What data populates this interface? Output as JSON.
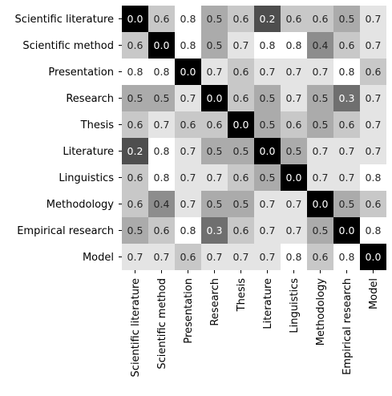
{
  "chart_data": {
    "type": "heatmap",
    "title": "",
    "xlabel": "",
    "ylabel": "",
    "colormap": "greys",
    "color_low": "#000000",
    "color_high": "#ffffff",
    "value_range": [
      0,
      0.8
    ],
    "annotate_format": "0.0",
    "rows": [
      "Scientific literature",
      "Scientific method",
      "Presentation",
      "Research",
      "Thesis",
      "Literature",
      "Linguistics",
      "Methodology",
      "Empirical research",
      "Model"
    ],
    "columns": [
      "Scientific literature",
      "Scientific method",
      "Presentation",
      "Research",
      "Thesis",
      "Literature",
      "Linguistics",
      "Methodology",
      "Empirical research",
      "Model"
    ],
    "values": [
      [
        0.0,
        0.6,
        0.8,
        0.5,
        0.6,
        0.2,
        0.6,
        0.6,
        0.5,
        0.7
      ],
      [
        0.6,
        0.0,
        0.8,
        0.5,
        0.7,
        0.8,
        0.8,
        0.4,
        0.6,
        0.7
      ],
      [
        0.8,
        0.8,
        0.0,
        0.7,
        0.6,
        0.7,
        0.7,
        0.7,
        0.8,
        0.6
      ],
      [
        0.5,
        0.5,
        0.7,
        0.0,
        0.6,
        0.5,
        0.7,
        0.5,
        0.3,
        0.7
      ],
      [
        0.6,
        0.7,
        0.6,
        0.6,
        0.0,
        0.5,
        0.6,
        0.5,
        0.6,
        0.7
      ],
      [
        0.2,
        0.8,
        0.7,
        0.5,
        0.5,
        0.0,
        0.5,
        0.7,
        0.7,
        0.7
      ],
      [
        0.6,
        0.8,
        0.7,
        0.7,
        0.6,
        0.5,
        0.0,
        0.7,
        0.7,
        0.8
      ],
      [
        0.6,
        0.4,
        0.7,
        0.5,
        0.5,
        0.7,
        0.7,
        0.0,
        0.5,
        0.6
      ],
      [
        0.5,
        0.6,
        0.8,
        0.3,
        0.6,
        0.7,
        0.7,
        0.5,
        0.0,
        0.8
      ],
      [
        0.7,
        0.7,
        0.6,
        0.7,
        0.7,
        0.7,
        0.8,
        0.6,
        0.8,
        0.0
      ]
    ]
  }
}
